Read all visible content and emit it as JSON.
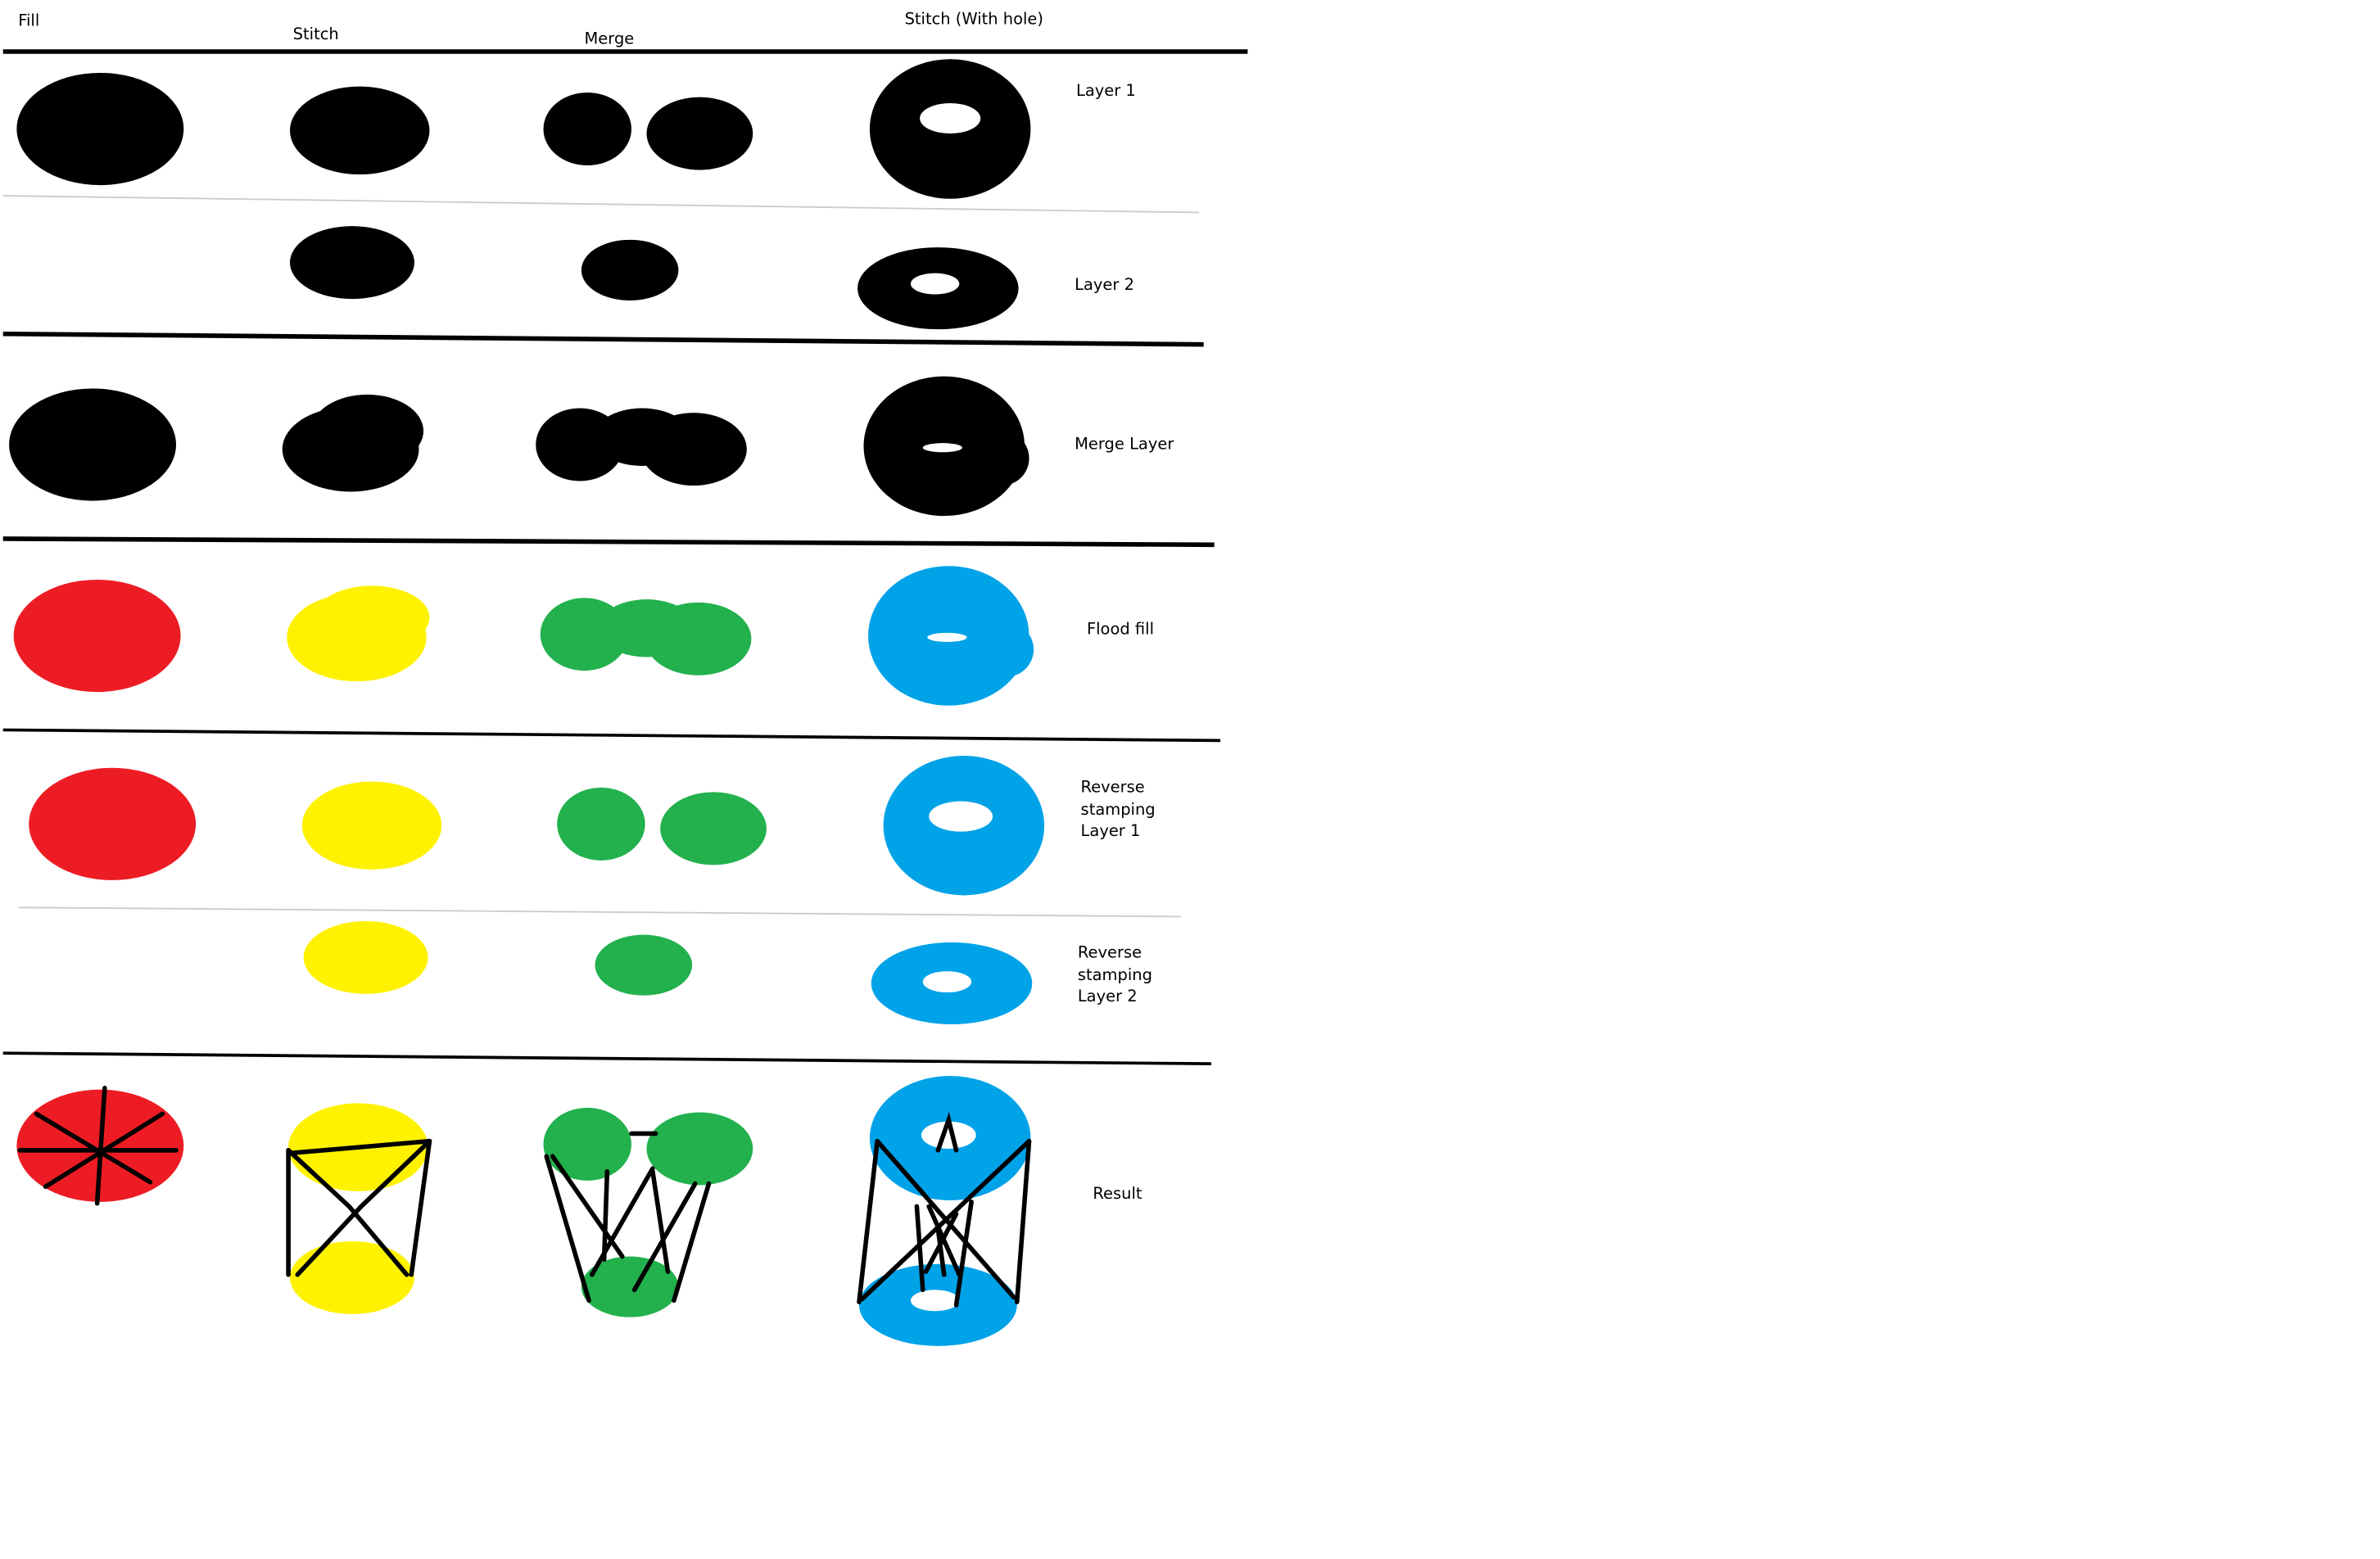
{
  "headers": {
    "fill": "Fill",
    "stitch": "Stitch",
    "merge": "Merge",
    "stitch_hole": "Stitch (With hole)"
  },
  "rows": {
    "layer1": "Layer 1",
    "layer2": "Layer 2",
    "merge_layer": "Merge Layer",
    "flood_fill": "Flood fill",
    "reverse_l1": "Reverse stamping Layer 1",
    "reverse_l2": "Reverse stamping Layer 2",
    "result": "Result"
  },
  "colors": {
    "black": "#000000",
    "fill": "#ED1C24",
    "stitch": "#FFF200",
    "merge": "#22B14C",
    "stitch_hole": "#00A2E8",
    "hole": "#FFFFFF"
  }
}
